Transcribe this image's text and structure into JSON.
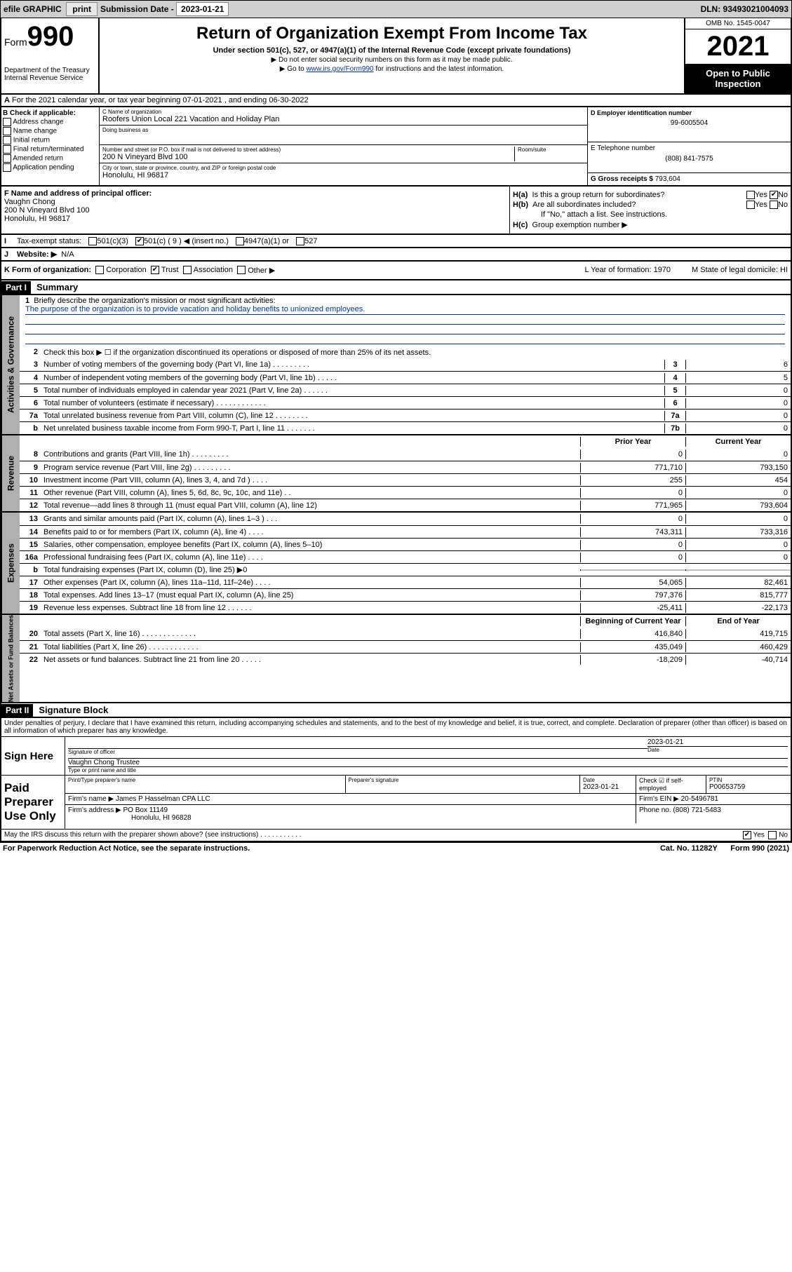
{
  "topbar": {
    "efile": "efile GRAPHIC",
    "print": "print",
    "subdate_lbl": "Submission Date -",
    "subdate": "2023-01-21",
    "dln": "DLN: 93493021004093"
  },
  "header": {
    "form_lbl": "Form",
    "form_no": "990",
    "dept": "Department of the Treasury\nInternal Revenue Service",
    "title": "Return of Organization Exempt From Income Tax",
    "sub": "Under section 501(c), 527, or 4947(a)(1) of the Internal Revenue Code (except private foundations)",
    "note1": "▶ Do not enter social security numbers on this form as it may be made public.",
    "note2_pre": "▶ Go to ",
    "note2_link": "www.irs.gov/Form990",
    "note2_post": " for instructions and the latest information.",
    "omb": "OMB No. 1545-0047",
    "year": "2021",
    "inspect": "Open to Public Inspection"
  },
  "a": "For the 2021 calendar year, or tax year beginning 07-01-2021   , and ending 06-30-2022",
  "b": {
    "hdr": "B Check if applicable:",
    "items": [
      "Address change",
      "Name change",
      "Initial return",
      "Final return/terminated",
      "Amended return",
      "Application pending"
    ]
  },
  "c": {
    "name_lbl": "C Name of organization",
    "name": "Roofers Union Local 221 Vacation and Holiday Plan",
    "dba_lbl": "Doing business as",
    "addr_lbl": "Number and street (or P.O. box if mail is not delivered to street address)",
    "room_lbl": "Room/suite",
    "addr": "200 N Vineyard Blvd 100",
    "city_lbl": "City or town, state or province, country, and ZIP or foreign postal code",
    "city": "Honolulu, HI  96817"
  },
  "d": {
    "lbl": "D Employer identification number",
    "val": "99-6005504"
  },
  "e": {
    "lbl": "E Telephone number",
    "val": "(808) 841-7575"
  },
  "g": {
    "lbl": "G Gross receipts $",
    "val": "793,604"
  },
  "f": {
    "lbl": "F  Name and address of principal officer:",
    "name": "Vaughn Chong",
    "addr": "200 N Vineyard Blvd 100",
    "city": "Honolulu, HI  96817"
  },
  "h": {
    "a_lbl": "Is this a group return for subordinates?",
    "a_yes": "Yes",
    "a_no": "No",
    "b_lbl": "Are all subordinates included?",
    "b_yes": "Yes",
    "b_no": "No",
    "attach": "If \"No,\" attach a list. See instructions.",
    "c_lbl": "Group exemption number ▶"
  },
  "i": {
    "lbl": "Tax-exempt status:",
    "c3": "501(c)(3)",
    "c": "501(c) ( 9 ) ◀ (insert no.)",
    "a1": "4947(a)(1) or",
    "s527": "527"
  },
  "j": {
    "lbl": "Website: ▶",
    "val": "N/A"
  },
  "k": {
    "lbl": "K Form of organization:",
    "corp": "Corporation",
    "trust": "Trust",
    "assoc": "Association",
    "other": "Other ▶",
    "l": "L Year of formation: 1970",
    "m": "M State of legal domicile: HI"
  },
  "parts": {
    "p1": "Part I",
    "p1t": "Summary",
    "p2": "Part II",
    "p2t": "Signature Block"
  },
  "sec1": {
    "q1": "Briefly describe the organization's mission or most significant activities:",
    "mission": "The purpose of the organization is to provide vacation and holiday benefits to unionized employees.",
    "q2": "Check this box ▶ ☐  if the organization discontinued its operations or disposed of more than 25% of its net assets.",
    "rows": [
      {
        "n": "3",
        "t": "Number of voting members of the governing body (Part VI, line 1a)  .    .    .    .    .    .    .    .    .",
        "b": "3",
        "v": "6"
      },
      {
        "n": "4",
        "t": "Number of independent voting members of the governing body (Part VI, line 1b)  .    .    .    .    .",
        "b": "4",
        "v": "5"
      },
      {
        "n": "5",
        "t": "Total number of individuals employed in calendar year 2021 (Part V, line 2a)  .    .    .    .    .    .",
        "b": "5",
        "v": "0"
      },
      {
        "n": "6",
        "t": "Total number of volunteers (estimate if necessary)  .    .    .    .    .    .    .    .    .    .    .    .",
        "b": "6",
        "v": "0"
      },
      {
        "n": "7a",
        "t": "Total unrelated business revenue from Part VIII, column (C), line 12  .    .    .    .    .    .    .    .",
        "b": "7a",
        "v": "0"
      },
      {
        "n": "b",
        "t": "Net unrelated business taxable income from Form 990-T, Part I, line 11  .    .    .    .    .    .    .",
        "b": "7b",
        "v": "0"
      }
    ]
  },
  "twocol_hdr": {
    "prior": "Prior Year",
    "current": "Current Year"
  },
  "rev": {
    "tab": "Revenue",
    "rows": [
      {
        "n": "8",
        "t": "Contributions and grants (Part VIII, line 1h)  .    .    .    .    .    .    .    .    .",
        "p": "0",
        "c": "0"
      },
      {
        "n": "9",
        "t": "Program service revenue (Part VIII, line 2g)  .    .    .    .    .    .    .    .    .",
        "p": "771,710",
        "c": "793,150"
      },
      {
        "n": "10",
        "t": "Investment income (Part VIII, column (A), lines 3, 4, and 7d )  .    .    .    .",
        "p": "255",
        "c": "454"
      },
      {
        "n": "11",
        "t": "Other revenue (Part VIII, column (A), lines 5, 6d, 8c, 9c, 10c, and 11e)  .    .",
        "p": "0",
        "c": "0"
      },
      {
        "n": "12",
        "t": "Total revenue—add lines 8 through 11 (must equal Part VIII, column (A), line 12)",
        "p": "771,965",
        "c": "793,604"
      }
    ]
  },
  "exp": {
    "tab": "Expenses",
    "rows": [
      {
        "n": "13",
        "t": "Grants and similar amounts paid (Part IX, column (A), lines 1–3 )  .    .    .",
        "p": "0",
        "c": "0"
      },
      {
        "n": "14",
        "t": "Benefits paid to or for members (Part IX, column (A), line 4)  .    .    .    .",
        "p": "743,311",
        "c": "733,316"
      },
      {
        "n": "15",
        "t": "Salaries, other compensation, employee benefits (Part IX, column (A), lines 5–10)",
        "p": "0",
        "c": "0"
      },
      {
        "n": "16a",
        "t": "Professional fundraising fees (Part IX, column (A), line 11e)  .    .    .    .",
        "p": "0",
        "c": "0"
      },
      {
        "n": "b",
        "t": "Total fundraising expenses (Part IX, column (D), line 25) ▶0",
        "p": "",
        "c": "",
        "gray": true
      },
      {
        "n": "17",
        "t": "Other expenses (Part IX, column (A), lines 11a–11d, 11f–24e)  .    .    .    .",
        "p": "54,065",
        "c": "82,461"
      },
      {
        "n": "18",
        "t": "Total expenses. Add lines 13–17 (must equal Part IX, column (A), line 25)",
        "p": "797,376",
        "c": "815,777"
      },
      {
        "n": "19",
        "t": "Revenue less expenses. Subtract line 18 from line 12  .    .    .    .    .    .",
        "p": "-25,411",
        "c": "-22,173"
      }
    ]
  },
  "net": {
    "tab": "Net Assets or Fund Balances",
    "hdr_b": "Beginning of Current Year",
    "hdr_e": "End of Year",
    "rows": [
      {
        "n": "20",
        "t": "Total assets (Part X, line 16)  .    .    .    .    .    .    .    .    .    .    .    .    .",
        "p": "416,840",
        "c": "419,715"
      },
      {
        "n": "21",
        "t": "Total liabilities (Part X, line 26)  .    .    .    .    .    .    .    .    .    .    .    .",
        "p": "435,049",
        "c": "460,429"
      },
      {
        "n": "22",
        "t": "Net assets or fund balances. Subtract line 21 from line 20  .    .    .    .    .",
        "p": "-18,209",
        "c": "-40,714"
      }
    ]
  },
  "sig": {
    "penalty": "Under penalties of perjury, I declare that I have examined this return, including accompanying schedules and statements, and to the best of my knowledge and belief, it is true, correct, and complete. Declaration of preparer (other than officer) is based on all information of which preparer has any knowledge.",
    "sign_here": "Sign Here",
    "sig_officer": "Signature of officer",
    "sig_date": "2023-01-21",
    "date_lbl": "Date",
    "officer_name": "Vaughn Chong  Trustee",
    "type_name": "Type or print name and title",
    "paid": "Paid Preparer Use Only",
    "prep_name_lbl": "Print/Type preparer's name",
    "prep_sig_lbl": "Preparer's signature",
    "prep_date_lbl": "Date",
    "prep_date": "2023-01-21",
    "check_lbl": "Check ☑ if self-employed",
    "ptin_lbl": "PTIN",
    "ptin": "P00653759",
    "firm_name_lbl": "Firm's name      ▶",
    "firm_name": "James P Hasselman CPA LLC",
    "firm_ein_lbl": "Firm's EIN ▶",
    "firm_ein": "20-5496781",
    "firm_addr_lbl": "Firm's address ▶",
    "firm_addr1": "PO Box 11149",
    "firm_addr2": "Honolulu, HI  96828",
    "phone_lbl": "Phone no.",
    "phone": "(808) 721-5483",
    "discuss": "May the IRS discuss this return with the preparer shown above? (see instructions)  .    .    .    .    .    .    .    .    .    .    .",
    "discuss_yes": "Yes",
    "discuss_no": "No"
  },
  "footer": {
    "pra": "For Paperwork Reduction Act Notice, see the separate instructions.",
    "cat": "Cat. No. 11282Y",
    "form": "Form 990 (2021)"
  }
}
